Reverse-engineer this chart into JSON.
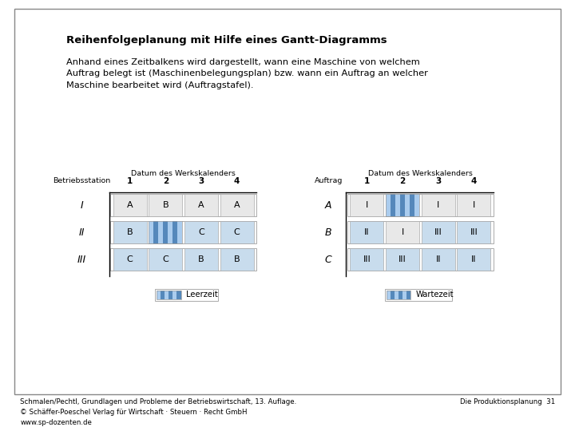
{
  "title": "Reihenfolgeplanung mit Hilfe eines Gantt-Diagramms",
  "description": "Anhand eines Zeitbalkens wird dargestellt, wann eine Maschine von welchem\nAuftrag belegt ist (Maschinenbelegungsplan) bzw. wann ein Auftrag an welcher\nMaschine bearbeitet wird (Auftragstafel).",
  "bg_color": "#ffffff",
  "border_color": "#888888",
  "left_table": {
    "col_header": "Betriebsstation",
    "group_header": "Datum des Werkskalenders",
    "days": [
      "1",
      "2",
      "3",
      "4"
    ],
    "rows": [
      "I",
      "II",
      "III"
    ],
    "cells": [
      [
        "A",
        "B",
        "A",
        "A"
      ],
      [
        "B",
        "leerzeit",
        "C",
        "C"
      ],
      [
        "C",
        "C",
        "B",
        "B"
      ]
    ],
    "cell_colors": [
      [
        "#e8e8e8",
        "#e8e8e8",
        "#e8e8e8",
        "#e8e8e8"
      ],
      [
        "#c8dced",
        "leerzeit",
        "#c8dced",
        "#c8dced"
      ],
      [
        "#c8dced",
        "#c8dced",
        "#c8dced",
        "#c8dced"
      ]
    ]
  },
  "right_table": {
    "col_header": "Auftrag",
    "group_header": "Datum des Werkskalenders",
    "days": [
      "1",
      "2",
      "3",
      "4"
    ],
    "rows": [
      "A",
      "B",
      "C"
    ],
    "cells": [
      [
        "I",
        "wartezeit",
        "I",
        "I"
      ],
      [
        "II",
        "I",
        "III",
        "III"
      ],
      [
        "III",
        "III",
        "II",
        "II"
      ]
    ],
    "cell_colors": [
      [
        "#e8e8e8",
        "wartezeit",
        "#e8e8e8",
        "#e8e8e8"
      ],
      [
        "#c8dced",
        "#e8e8e8",
        "#c8dced",
        "#c8dced"
      ],
      [
        "#c8dced",
        "#c8dced",
        "#c8dced",
        "#c8dced"
      ]
    ]
  },
  "leerzeit_label": "Leerzeit",
  "wartezeit_label": "Wartezeit",
  "footer_left": "Schmalen/Pechtl, Grundlagen und Probleme der Betriebswirtschaft, 13. Auflage.\n© Schäffer-Poeschel Verlag für Wirtschaft · Steuern · Recht GmbH\nwww.sp-dozenten.de",
  "footer_right": "Die Produktionsplanung  31",
  "light_blue": "#c8dced",
  "light_gray": "#e8e8e8",
  "stripe_dark": "#5588bb",
  "stripe_light": "#aaccee"
}
